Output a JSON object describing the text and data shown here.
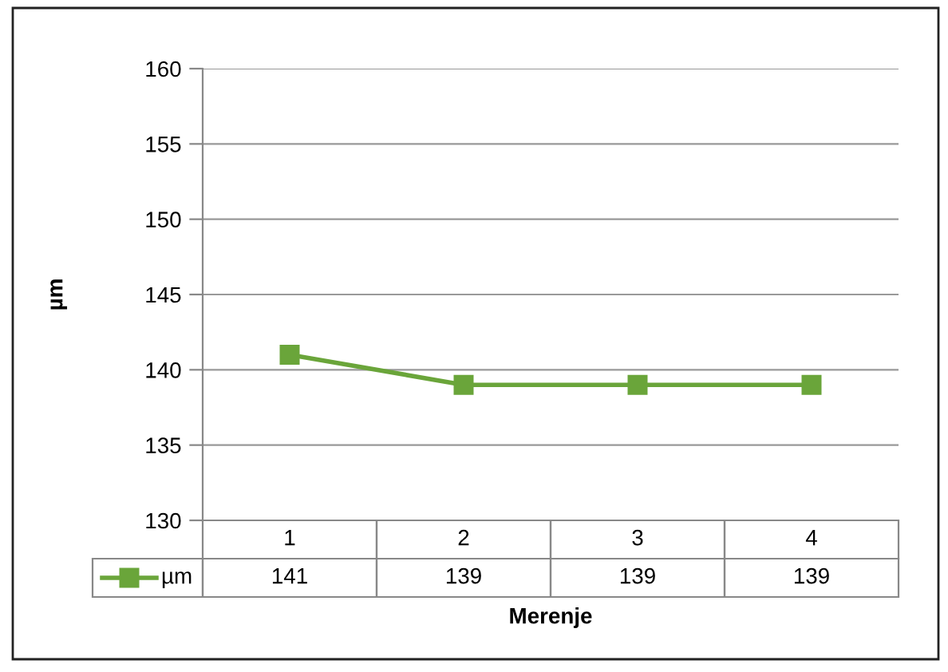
{
  "chart_data": {
    "type": "line",
    "ylabel": "µm",
    "xlabel": "Merenje",
    "categories": [
      "1",
      "2",
      "3",
      "4"
    ],
    "series": [
      {
        "name": "µm",
        "color": "#6aa53a",
        "values": [
          141,
          139,
          139,
          139
        ]
      }
    ],
    "ylim": [
      130,
      160
    ],
    "yticks": [
      130,
      135,
      140,
      145,
      150,
      155,
      160
    ],
    "grid": "y",
    "marker": "square",
    "line_style": "solid",
    "legend": "bottom",
    "data_labels": true
  }
}
